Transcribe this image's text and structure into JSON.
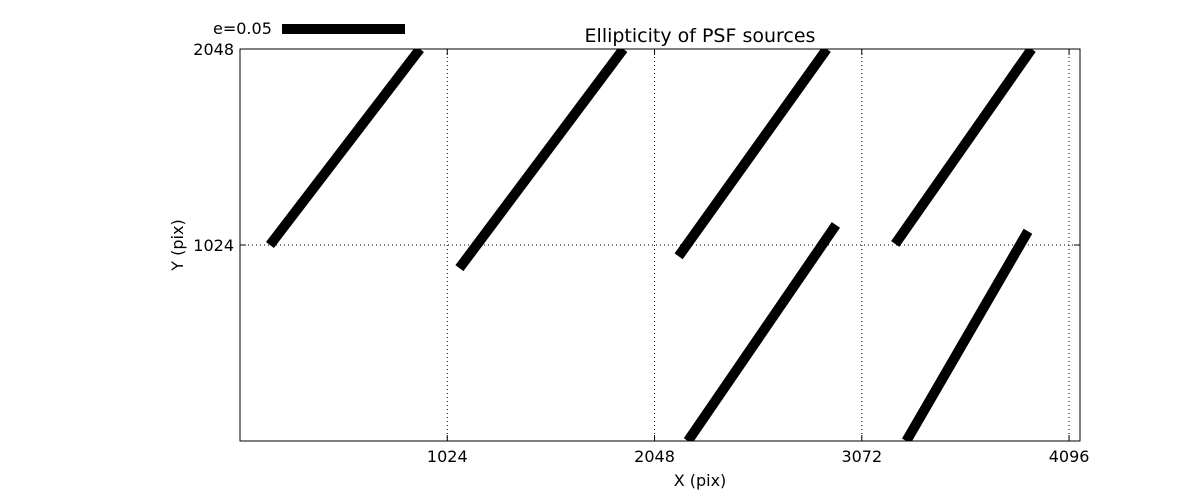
{
  "chart_data": {
    "type": "quiver",
    "title": "Ellipticity of PSF sources",
    "xlabel": "X (pix)",
    "ylabel": "Y (pix)",
    "xlim": [
      0,
      4150
    ],
    "ylim": [
      0,
      2048
    ],
    "xticks": [
      {
        "value": 1024,
        "label": "1024"
      },
      {
        "value": 2048,
        "label": "2048"
      },
      {
        "value": 3072,
        "label": "3072"
      },
      {
        "value": 4096,
        "label": "4096"
      }
    ],
    "yticks": [
      {
        "value": 1024,
        "label": "1024"
      },
      {
        "value": 2048,
        "label": "2048"
      }
    ],
    "grid": true,
    "legend": {
      "label": "e=0.05",
      "placement": "top-left",
      "e_value": 0.05
    },
    "stick_color": "#000000",
    "sticks": [
      {
        "x0": 148,
        "y0": 1024,
        "x1": 889,
        "y1": 2048
      },
      {
        "x0": 1084,
        "y0": 903,
        "x1": 1894,
        "y1": 2048
      },
      {
        "x0": 2167,
        "y0": 965,
        "x1": 2899,
        "y1": 2048
      },
      {
        "x0": 3237,
        "y0": 1029,
        "x1": 3911,
        "y1": 2048
      },
      {
        "x0": 2213,
        "y0": 0,
        "x1": 2944,
        "y1": 1129
      },
      {
        "x0": 3292,
        "y0": 0,
        "x1": 3893,
        "y1": 1096
      }
    ]
  }
}
